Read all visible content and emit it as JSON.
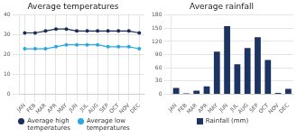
{
  "chart_data": [
    {
      "type": "line",
      "title": "Average temperatures",
      "categories": [
        "JAN",
        "FEB",
        "MAR",
        "APR",
        "MAY",
        "JUN",
        "JUL",
        "AUG",
        "SEP",
        "OCT",
        "NOV",
        "DEC"
      ],
      "series": [
        {
          "name": "Average high\ntemperatures",
          "color": "#1a2d5a",
          "marker": "o",
          "values": [
            31,
            31,
            32,
            33,
            33,
            32,
            32,
            32,
            32,
            32,
            32,
            31
          ]
        },
        {
          "name": "Average low\ntemperatures",
          "color": "#29a9e0",
          "marker": "o",
          "values": [
            23,
            23,
            23,
            24,
            25,
            25,
            25,
            25,
            24,
            24,
            24,
            23
          ]
        }
      ],
      "ylim": [
        0,
        40
      ],
      "yticks": [
        0,
        10,
        20,
        30,
        40
      ],
      "grid": true,
      "legend": "bottom"
    },
    {
      "type": "bar",
      "title": "Average rainfall",
      "categories": [
        "JAN",
        "FEB",
        "MAR",
        "APR",
        "MAY",
        "JUN",
        "JUL",
        "AUG",
        "SEP",
        "OCT",
        "NOV",
        "DEC"
      ],
      "series": [
        {
          "name": "Rainfall (mm)",
          "color": "#1c3461",
          "values": [
            14,
            2,
            8,
            18,
            97,
            155,
            68,
            105,
            130,
            78,
            3,
            12
          ]
        }
      ],
      "ylim": [
        0,
        180
      ],
      "yticks": [
        0,
        30,
        60,
        90,
        120,
        150,
        180
      ],
      "grid": "y",
      "legend": "bottom"
    }
  ]
}
